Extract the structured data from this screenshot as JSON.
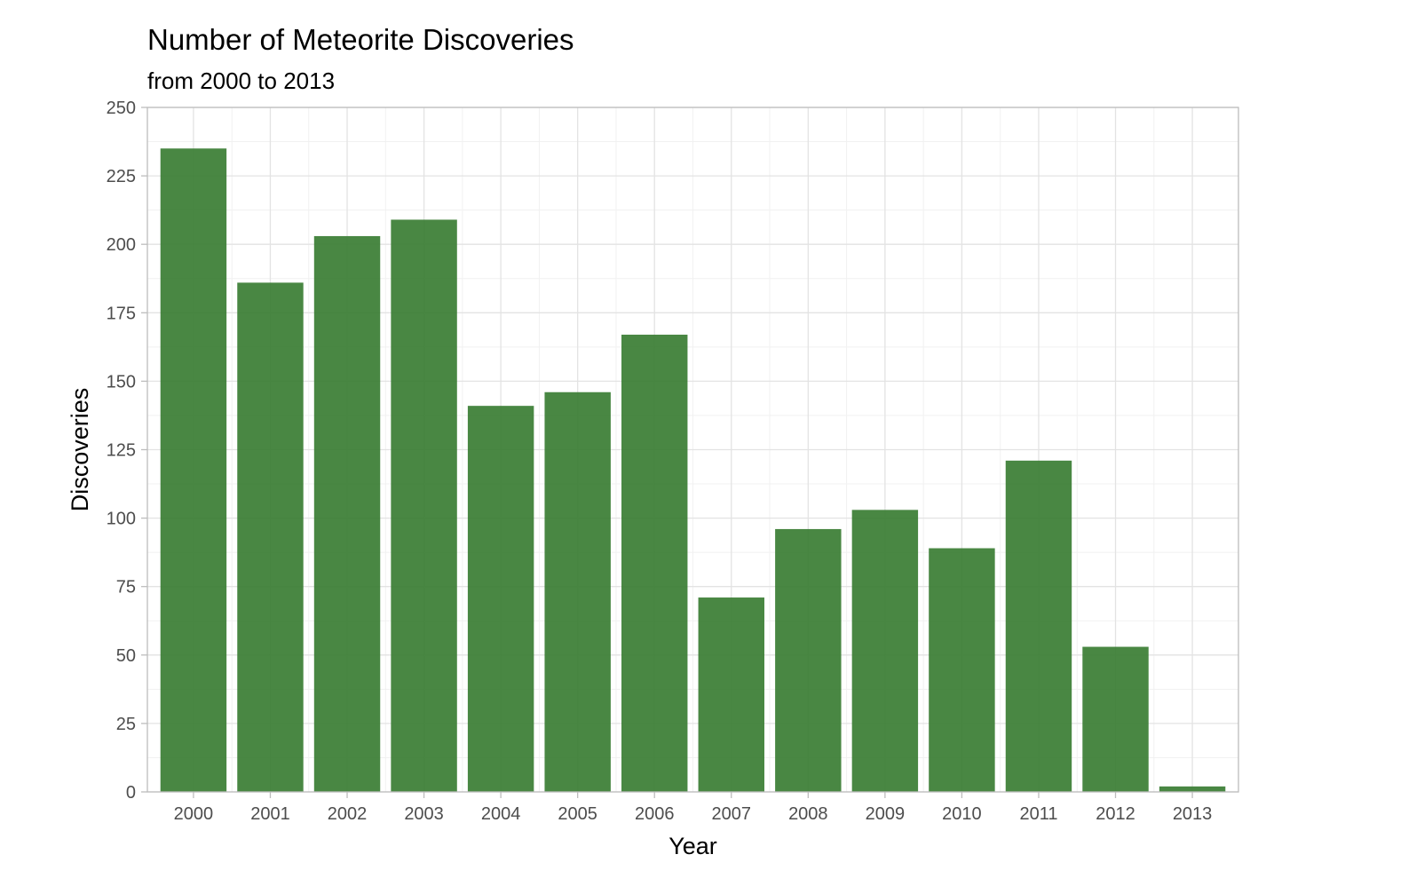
{
  "chart_data": {
    "type": "bar",
    "title": "Number of Meteorite Discoveries",
    "subtitle": "from 2000 to 2013",
    "xlabel": "Year",
    "ylabel": "Discoveries",
    "categories": [
      "2000",
      "2001",
      "2002",
      "2003",
      "2004",
      "2005",
      "2006",
      "2007",
      "2008",
      "2009",
      "2010",
      "2011",
      "2012",
      "2013"
    ],
    "values": [
      235,
      186,
      203,
      209,
      141,
      146,
      167,
      71,
      96,
      103,
      89,
      121,
      53,
      2
    ],
    "ylim": [
      0,
      250
    ],
    "yticks": [
      0,
      25,
      50,
      75,
      100,
      125,
      150,
      175,
      200,
      225,
      250
    ],
    "grid": true,
    "legend": "none",
    "colors": {
      "bar": "#3a7d33",
      "bar_opacity": 0.92
    }
  }
}
